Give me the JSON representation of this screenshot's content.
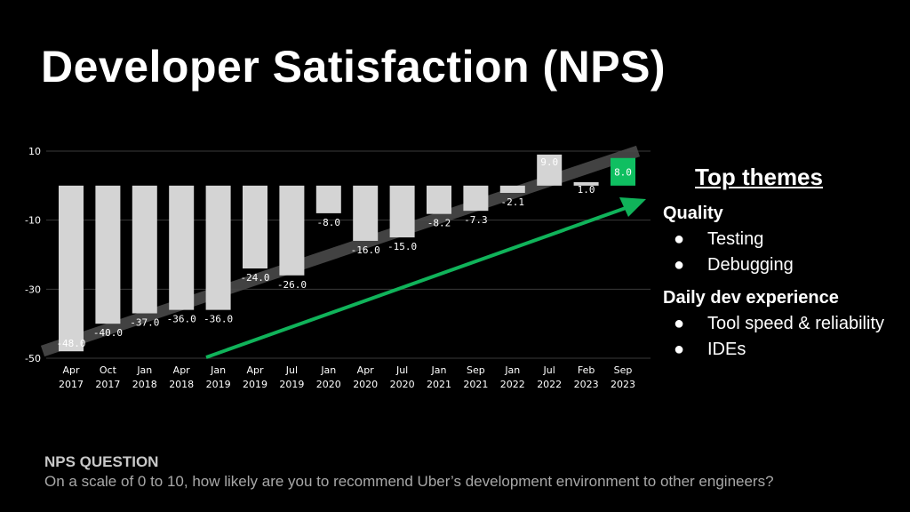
{
  "page": {
    "title": "Developer Satisfaction (NPS)"
  },
  "chart_data": {
    "type": "bar",
    "title": "",
    "xlabel": "",
    "ylabel": "",
    "ylim": [
      -50,
      10
    ],
    "yticks": [
      10,
      -10,
      -30,
      -50
    ],
    "grid": true,
    "categories": [
      [
        "Apr",
        "2017"
      ],
      [
        "Oct",
        "2017"
      ],
      [
        "Jan",
        "2018"
      ],
      [
        "Apr",
        "2018"
      ],
      [
        "Jan",
        "2019"
      ],
      [
        "Apr",
        "2019"
      ],
      [
        "Jul",
        "2019"
      ],
      [
        "Jan",
        "2020"
      ],
      [
        "Apr",
        "2020"
      ],
      [
        "Jul",
        "2020"
      ],
      [
        "Jan",
        "2021"
      ],
      [
        "Sep",
        "2021"
      ],
      [
        "Jan",
        "2022"
      ],
      [
        "Jul",
        "2022"
      ],
      [
        "Feb",
        "2023"
      ],
      [
        "Sep",
        "2023"
      ]
    ],
    "values": [
      -48.0,
      -40.0,
      -37.0,
      -36.0,
      -36.0,
      -24.0,
      -26.0,
      -8.0,
      -16.0,
      -15.0,
      -8.2,
      -7.3,
      -2.1,
      9.0,
      1.0,
      8.0
    ],
    "value_labels": [
      "-48.0",
      "-40.0",
      "-37.0",
      "-36.0",
      "-36.0",
      "-24.0",
      "-26.0",
      "-8.0",
      "-16.0",
      "-15.0",
      "-8.2",
      "-7.3",
      "-2.1",
      "9.0",
      "1.0",
      "8.0"
    ],
    "bar_color": "#d4d4d4",
    "highlight_index": 15,
    "highlight_color": "#0fbf61",
    "trend_line_color": "#4a4a4a",
    "arrow_color": "#10b35a"
  },
  "themes": {
    "heading": "Top themes",
    "groups": [
      {
        "title": "Quality",
        "items": [
          "Testing",
          "Debugging"
        ]
      },
      {
        "title": "Daily dev experience",
        "items": [
          "Tool speed & reliability",
          "IDEs"
        ]
      }
    ],
    "bullet": "●"
  },
  "nps_question": {
    "title": "NPS QUESTION",
    "text": "On a scale of 0 to 10, how likely are you to recommend Uber’s development environment to other engineers?"
  }
}
